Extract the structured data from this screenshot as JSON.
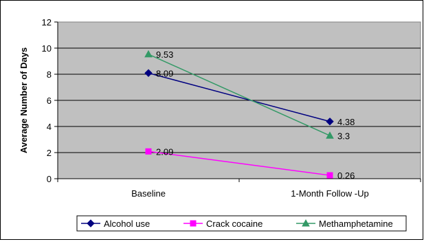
{
  "chart_data": {
    "type": "line",
    "title": "",
    "xlabel": "",
    "ylabel": "Average Number of Days",
    "categories": [
      "Baseline",
      "1-Month Follow -Up"
    ],
    "ylim": [
      0,
      12
    ],
    "yticks": [
      0,
      2,
      4,
      6,
      8,
      10,
      12
    ],
    "grid": true,
    "legend_position": "bottom",
    "series": [
      {
        "name": "Alcohol use",
        "values": [
          8.09,
          4.38
        ],
        "labels": [
          "8.09",
          "4.38"
        ],
        "color": "#000080",
        "marker": "diamond"
      },
      {
        "name": "Crack cocaine",
        "values": [
          2.09,
          0.26
        ],
        "labels": [
          "2.09",
          "0.26"
        ],
        "color": "#ff00ff",
        "marker": "square"
      },
      {
        "name": "Methamphetamine",
        "values": [
          9.53,
          3.3
        ],
        "labels": [
          "9.53",
          "3.3"
        ],
        "color": "#339966",
        "marker": "triangle"
      }
    ],
    "colors": {
      "plot_background": "#c0c0c0",
      "gridline": "#000000"
    }
  }
}
